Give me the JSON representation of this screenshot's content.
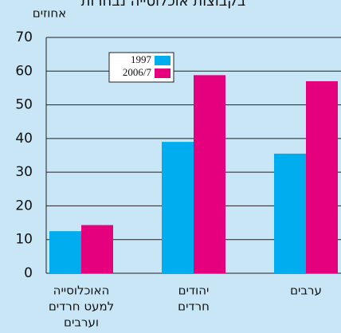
{
  "chart_data": {
    "type": "bar",
    "title": "בקבוצות אוכלוסייה נבחרות",
    "y_label": "אחוזים",
    "categories": [
      [
        "האוכלוסייה",
        "למעט חרדים",
        "וערבים"
      ],
      [
        "יהודים",
        "חרדים"
      ],
      [
        "ערבים"
      ]
    ],
    "series": [
      {
        "name": "1997",
        "color": "#00aeef",
        "values": [
          12.5,
          39,
          35.5
        ]
      },
      {
        "name": "2006/7",
        "color": "#e5007e",
        "values": [
          14.3,
          58.8,
          57
        ]
      }
    ],
    "ylim": [
      0,
      70
    ],
    "yticks": [
      0,
      10,
      20,
      30,
      40,
      50,
      60,
      70
    ],
    "grid": true
  }
}
